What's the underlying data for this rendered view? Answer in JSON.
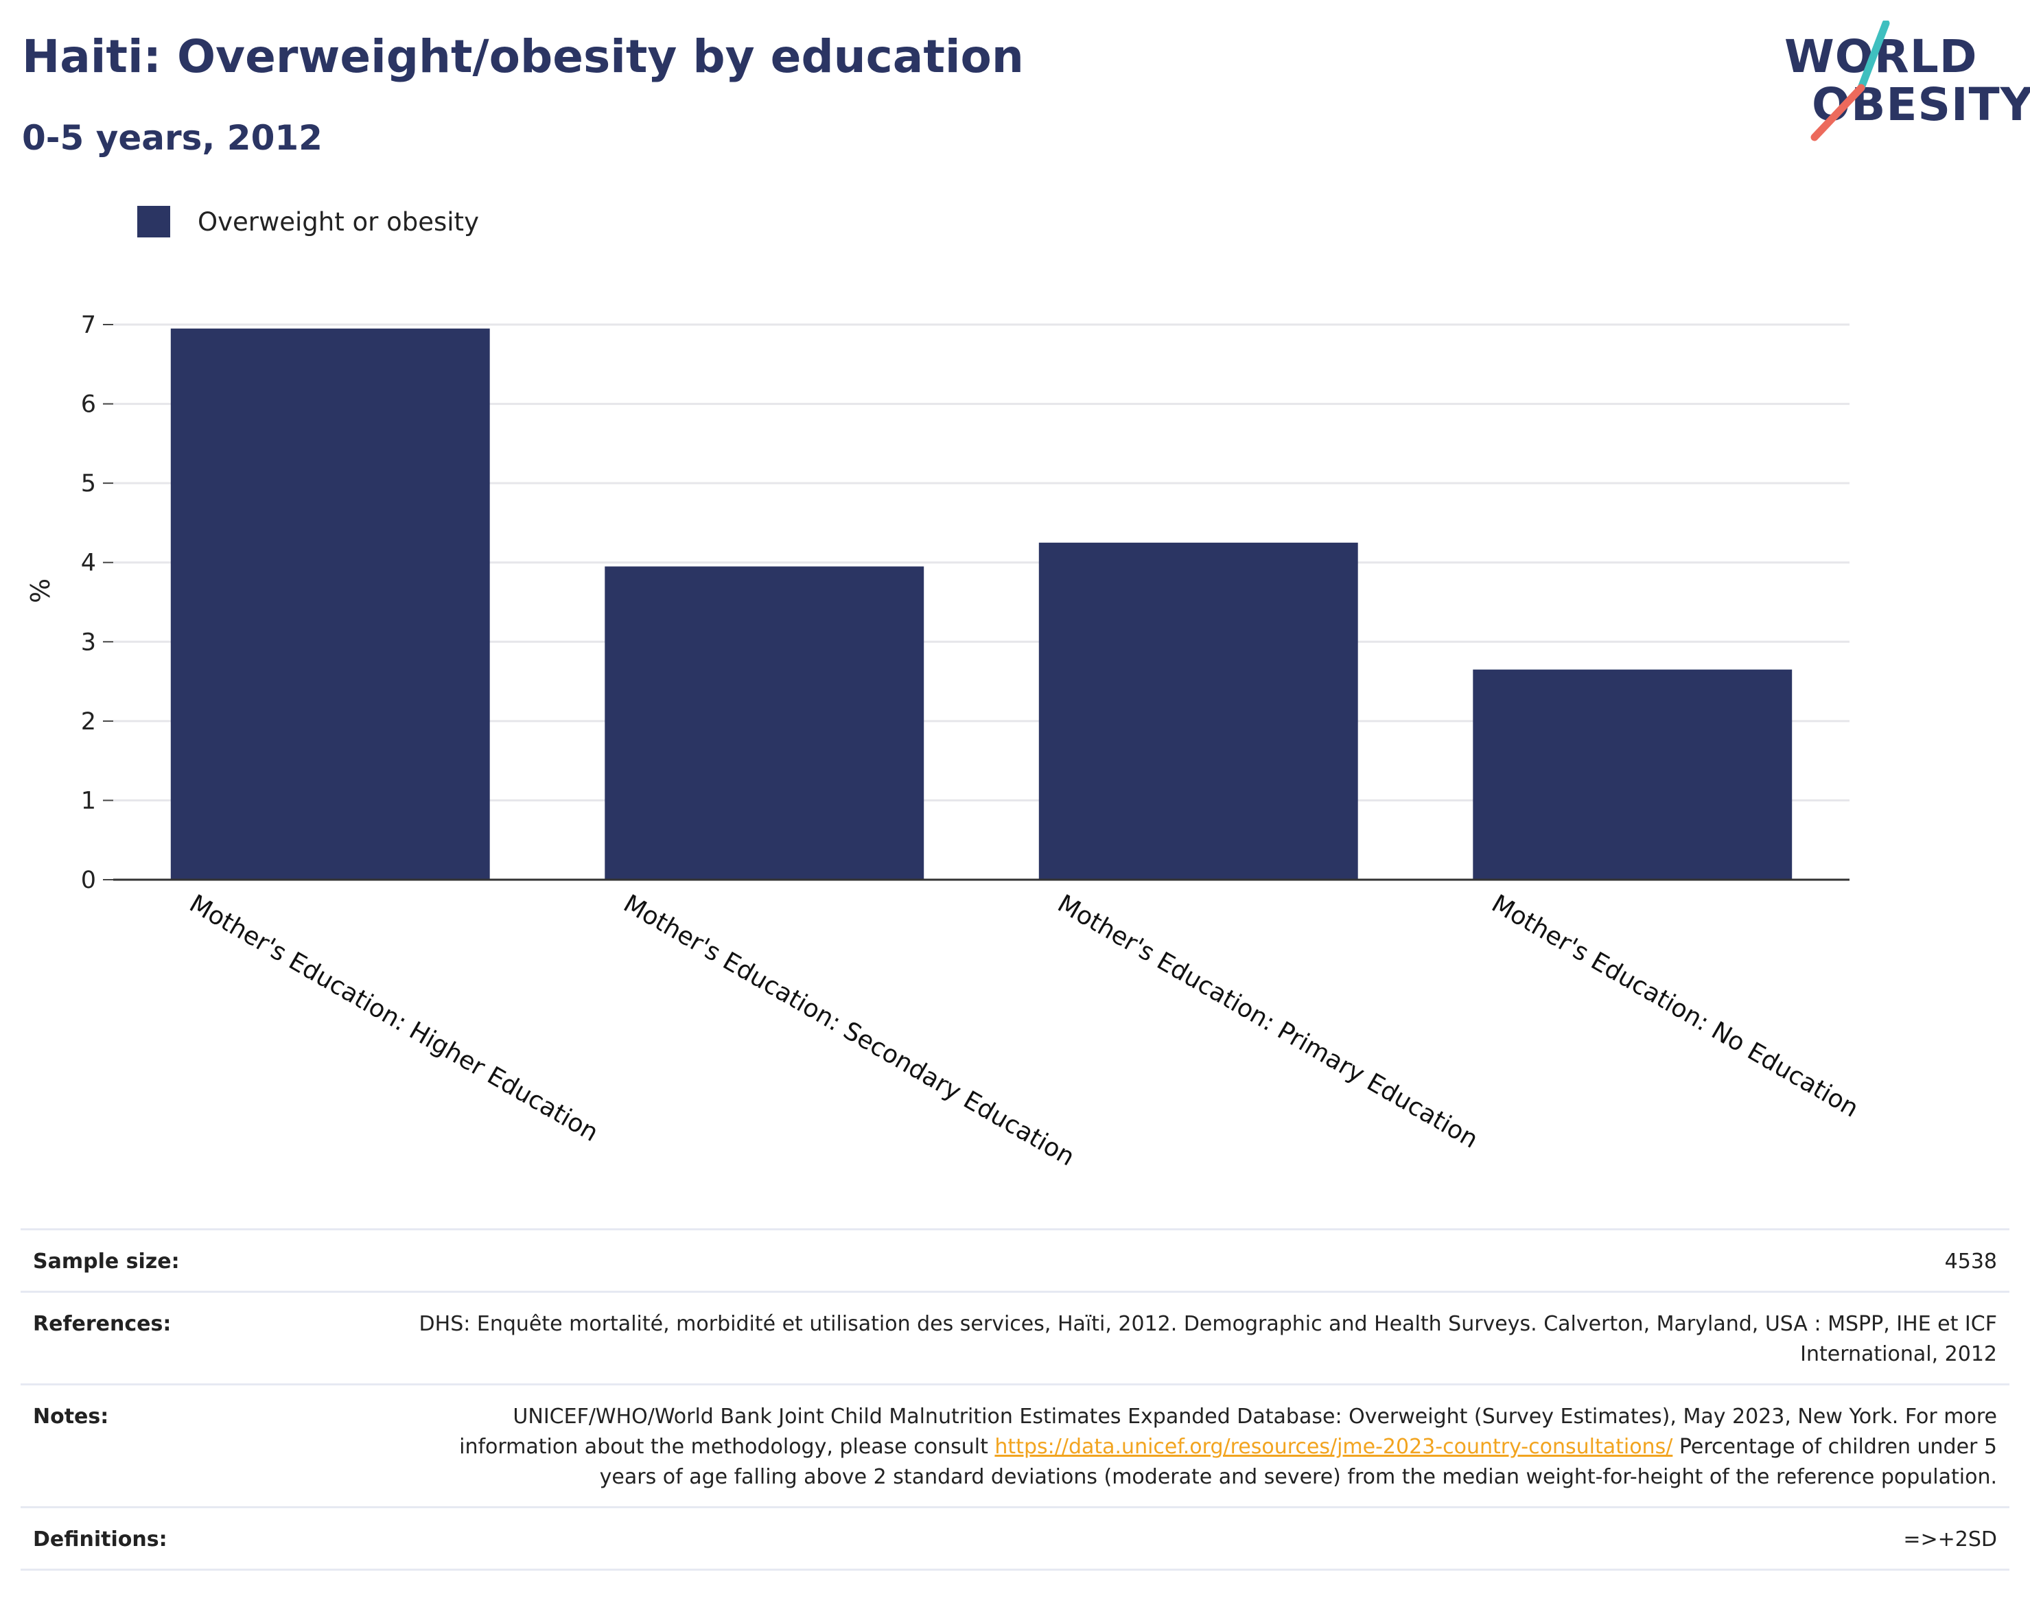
{
  "header": {
    "title": "Haiti: Overweight/obesity by education",
    "subtitle": "0-5 years, 2012"
  },
  "logo": {
    "line1": "WORLD",
    "line2": "OBESITY",
    "text_color": "#2b3563",
    "accent_teal": "#3fbfbf",
    "accent_coral": "#ec6a5c"
  },
  "legend": {
    "items": [
      {
        "label": "Overweight or obesity",
        "color": "#2b3563"
      }
    ]
  },
  "chart_data": {
    "type": "bar",
    "title": "Haiti: Overweight/obesity by education",
    "subtitle": "0-5 years, 2012",
    "xlabel": "",
    "ylabel": "%",
    "ylim": [
      0,
      7
    ],
    "yticks": [
      0,
      1,
      2,
      3,
      4,
      5,
      6,
      7
    ],
    "grid": true,
    "legend_position": "top-left",
    "categories": [
      "Mother's Education: Higher Education",
      "Mother's Education: Secondary Education",
      "Mother's Education: Primary Education",
      "Mother's Education: No Education"
    ],
    "series": [
      {
        "name": "Overweight or obesity",
        "color": "#2b3563",
        "values": [
          6.95,
          3.95,
          4.25,
          2.65
        ]
      }
    ]
  },
  "info": {
    "sample_size": {
      "label": "Sample size:",
      "value": "4538"
    },
    "references": {
      "label": "References:",
      "value": "DHS: Enquête mortalité, morbidité et utilisation des services, Haïti, 2012. Demographic and Health Surveys. Calverton, Maryland, USA : MSPP, IHE et ICF International, 2012"
    },
    "notes": {
      "label": "Notes:",
      "text_before": "UNICEF/WHO/World Bank Joint Child Malnutrition Estimates Expanded Database: Overweight (Survey Estimates), May 2023, New York. For more information about the methodology, please consult ",
      "link": "https://data.unicef.org/resources/jme-2023-country-consultations/",
      "text_after": " Percentage of children under 5 years of age falling above 2 standard deviations (moderate and severe) from the median weight-for-height of the reference population."
    },
    "definitions": {
      "label": "Definitions:",
      "value": "=>+2SD"
    }
  }
}
